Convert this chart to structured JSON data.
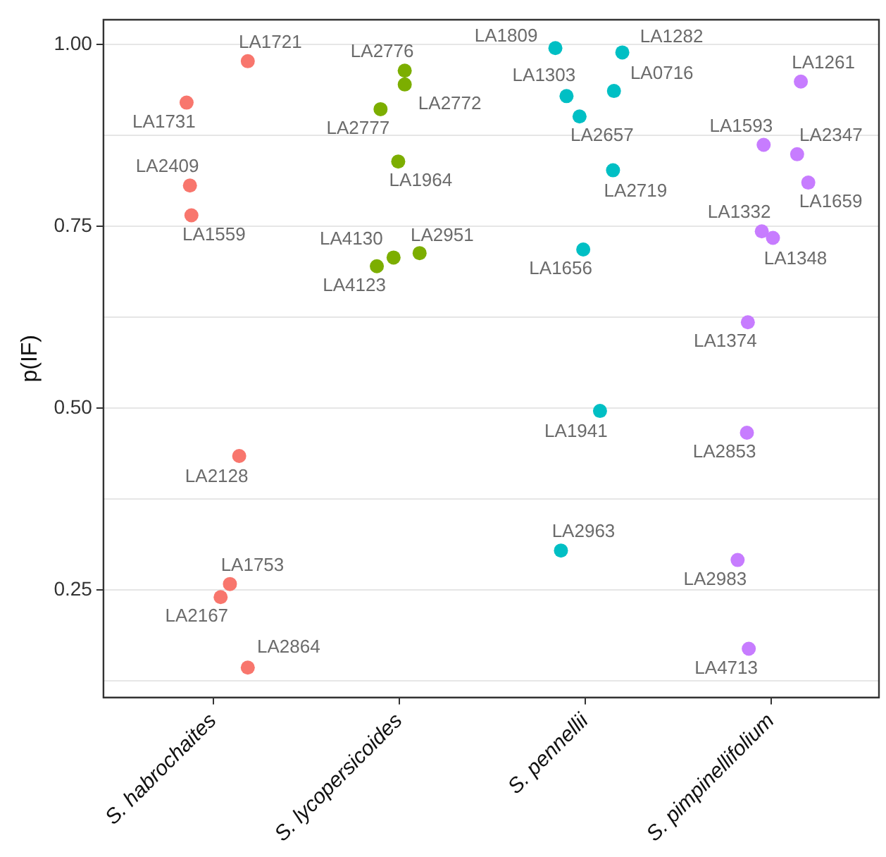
{
  "chart_data": {
    "type": "scatter",
    "ylabel": "p(IF)",
    "categories": [
      "S. habrochaites",
      "S. lycopersicoides",
      "S. pennellii",
      "S. pimpinellifolium"
    ],
    "ylim": [
      0.102,
      1.034
    ],
    "yticks": [
      {
        "value": 0.125,
        "label": null
      },
      {
        "value": 0.25,
        "label": "0.25"
      },
      {
        "value": 0.375,
        "label": null
      },
      {
        "value": 0.5,
        "label": "0.50"
      },
      {
        "value": 0.625,
        "label": null
      },
      {
        "value": 0.75,
        "label": "0.75"
      },
      {
        "value": 0.875,
        "label": null
      },
      {
        "value": 1,
        "label": "1.00"
      }
    ],
    "grid": "y",
    "legend": false,
    "marker": "circle",
    "series": [
      {
        "color": "#f8766d",
        "x": [
          "S. habrochaites",
          "S. habrochaites",
          "S. habrochaites",
          "S. habrochaites",
          "S. habrochaites",
          "S. habrochaites",
          "S. habrochaites",
          "S. habrochaites"
        ],
        "values": [
          0.977,
          0.92,
          0.806,
          0.765,
          0.434,
          0.258,
          0.24,
          0.143
        ]
      },
      {
        "color": "#7cae00",
        "x": [
          "S. lycopersicoides",
          "S. lycopersicoides",
          "S. lycopersicoides",
          "S. lycopersicoides",
          "S. lycopersicoides",
          "S. lycopersicoides",
          "S. lycopersicoides"
        ],
        "values": [
          0.964,
          0.945,
          0.911,
          0.839,
          0.713,
          0.707,
          0.695
        ]
      },
      {
        "color": "#00bfc4",
        "x": [
          "S. pennellii",
          "S. pennellii",
          "S. pennellii",
          "S. pennellii",
          "S. pennellii",
          "S. pennellii",
          "S. pennellii",
          "S. pennellii",
          "S. pennellii"
        ],
        "values": [
          0.995,
          0.989,
          0.929,
          0.936,
          0.901,
          0.827,
          0.718,
          0.496,
          0.304
        ]
      },
      {
        "color": "#c77cff",
        "x": [
          "S. pimpinellifolium",
          "S. pimpinellifolium",
          "S. pimpinellifolium",
          "S. pimpinellifolium",
          "S. pimpinellifolium",
          "S. pimpinellifolium",
          "S. pimpinellifolium",
          "S. pimpinellifolium",
          "S. pimpinellifolium",
          "S. pimpinellifolium"
        ],
        "values": [
          0.949,
          0.862,
          0.849,
          0.81,
          0.743,
          0.734,
          0.618,
          0.466,
          0.291,
          0.169
        ]
      }
    ],
    "annotations": [
      "LA1721",
      "LA1731",
      "LA2409",
      "LA1559",
      "LA2128",
      "LA1753",
      "LA2167",
      "LA2864",
      "LA2776",
      "LA2772",
      "LA2777",
      "LA1964",
      "LA2951",
      "LA4130",
      "LA4123",
      "LA1809",
      "LA1282",
      "LA1303",
      "LA0716",
      "LA2657",
      "LA2719",
      "LA1656",
      "LA1941",
      "LA2963",
      "LA1261",
      "LA1593",
      "LA2347",
      "LA1659",
      "LA1332",
      "LA1348",
      "LA1374",
      "LA2853",
      "LA2983",
      "LA4713"
    ]
  }
}
